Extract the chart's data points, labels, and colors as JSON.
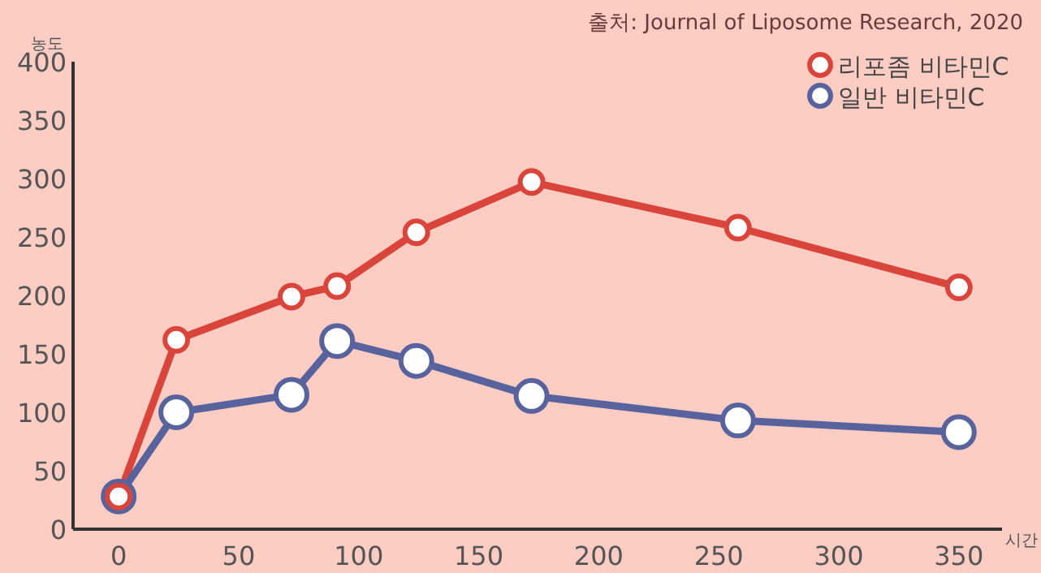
{
  "chart_data": {
    "type": "line",
    "ylabel": "농도",
    "xlabel": "시간",
    "annotations": [
      "출처: Journal of Liposome Research, 2020"
    ],
    "x": [
      0,
      24,
      72,
      91,
      124,
      172,
      258,
      350
    ],
    "xlim": [
      -19,
      368
    ],
    "ylim": [
      0,
      400
    ],
    "xticks": [
      0,
      50,
      100,
      150,
      200,
      250,
      300,
      350
    ],
    "yticks": [
      0,
      50,
      100,
      150,
      200,
      250,
      300,
      350,
      400
    ],
    "legend": "top right",
    "marker": "circle",
    "grid": false,
    "series": [
      {
        "name": "리포좀 비타민C",
        "color": "#d9453b",
        "values": [
          28,
          162,
          199,
          208,
          254,
          297,
          258,
          207
        ]
      },
      {
        "name": "일반 비타민C",
        "color": "#58639e",
        "values": [
          28,
          100,
          115,
          161,
          144,
          114,
          93,
          83
        ]
      }
    ]
  }
}
